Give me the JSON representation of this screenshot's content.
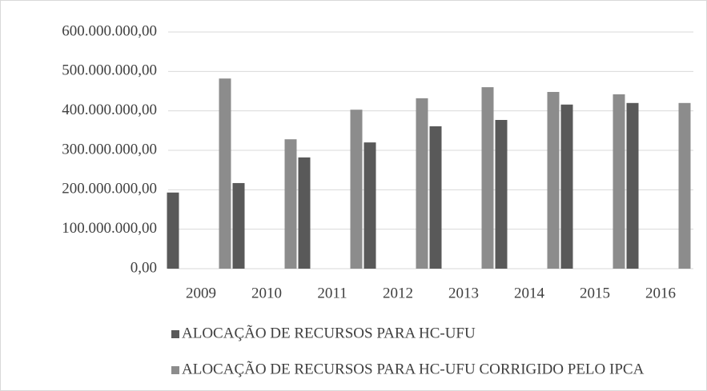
{
  "chart_data": {
    "type": "bar",
    "categories": [
      "2009",
      "2010",
      "2011",
      "2012",
      "2013",
      "2014",
      "2015",
      "2016"
    ],
    "series": [
      {
        "name": "ALOCAÇÃO DE RECURSOS PARA HC-UFU",
        "color": "#595959",
        "values": [
          193000000,
          217000000,
          282000000,
          320000000,
          361000000,
          377000000,
          416000000,
          420000000
        ]
      },
      {
        "name": "ALOCAÇÃO DE RECURSOS PARA HC-UFU CORRIGIDO PELO IPCA",
        "color": "#8c8c8c",
        "values": [
          482000000,
          328000000,
          403000000,
          432000000,
          460000000,
          448000000,
          442000000,
          420000000
        ]
      }
    ],
    "ylim": [
      0,
      600000000
    ],
    "yticks": [
      {
        "value": 0,
        "label": "0,00"
      },
      {
        "value": 100000000,
        "label": "100.000.000,00"
      },
      {
        "value": 200000000,
        "label": "200.000.000,00"
      },
      {
        "value": 300000000,
        "label": "300.000.000,00"
      },
      {
        "value": 400000000,
        "label": "400.000.000,00"
      },
      {
        "value": 500000000,
        "label": "500.000.000,00"
      },
      {
        "value": 600000000,
        "label": "600.000.000,00"
      }
    ],
    "grid": true,
    "legend": "bottom"
  }
}
